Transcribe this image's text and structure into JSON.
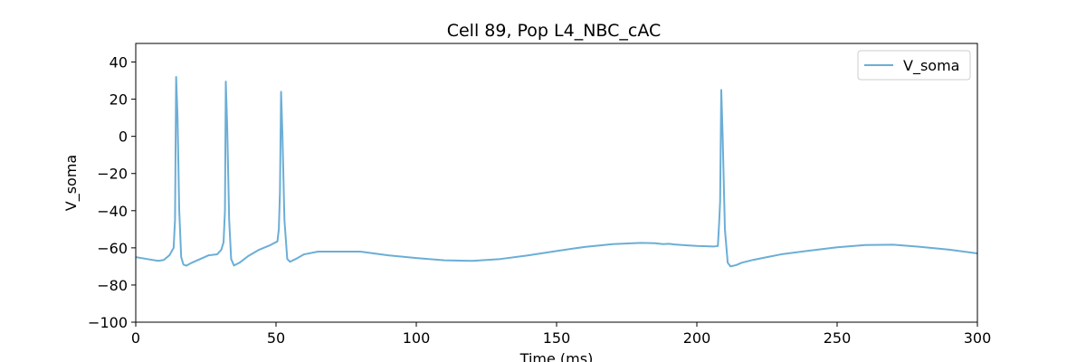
{
  "chart_data": {
    "type": "line",
    "title": "Cell 89, Pop L4_NBC_cAC",
    "xlabel": "Time (ms)",
    "ylabel": "V_soma",
    "xlim": [
      0,
      300
    ],
    "ylim": [
      -100,
      50
    ],
    "xticks": [
      0,
      50,
      100,
      150,
      200,
      250,
      300
    ],
    "yticks": [
      -100,
      -80,
      -60,
      -40,
      -20,
      0,
      20,
      40
    ],
    "grid": false,
    "legend_position": "top-right",
    "series": [
      {
        "name": "V_soma",
        "color": "#6baed6",
        "points": [
          [
            0,
            -65
          ],
          [
            4,
            -66
          ],
          [
            8,
            -67
          ],
          [
            10,
            -66.5
          ],
          [
            12,
            -64
          ],
          [
            13.5,
            -60
          ],
          [
            14,
            -45
          ],
          [
            14.4,
            32
          ],
          [
            14.9,
            10
          ],
          [
            15.5,
            -40
          ],
          [
            16.2,
            -65
          ],
          [
            17,
            -69
          ],
          [
            18,
            -69.6
          ],
          [
            20,
            -68
          ],
          [
            23,
            -66
          ],
          [
            26,
            -64
          ],
          [
            29,
            -63.5
          ],
          [
            30.5,
            -61
          ],
          [
            31.3,
            -57
          ],
          [
            31.8,
            -40
          ],
          [
            32.1,
            29.5
          ],
          [
            32.6,
            5
          ],
          [
            33.3,
            -45
          ],
          [
            34,
            -66
          ],
          [
            35,
            -69.5
          ],
          [
            37,
            -68
          ],
          [
            40,
            -64.5
          ],
          [
            44,
            -61
          ],
          [
            48,
            -58.5
          ],
          [
            50.5,
            -56.5
          ],
          [
            51,
            -50
          ],
          [
            51.4,
            -30
          ],
          [
            51.8,
            24
          ],
          [
            52.3,
            0
          ],
          [
            53,
            -45
          ],
          [
            54,
            -66
          ],
          [
            55,
            -67.5
          ],
          [
            57,
            -66
          ],
          [
            60,
            -63.5
          ],
          [
            65,
            -62
          ],
          [
            75,
            -62
          ],
          [
            80,
            -62
          ],
          [
            90,
            -64
          ],
          [
            100,
            -65.5
          ],
          [
            110,
            -66.7
          ],
          [
            120,
            -67
          ],
          [
            130,
            -66
          ],
          [
            140,
            -64
          ],
          [
            150,
            -61.7
          ],
          [
            160,
            -59.5
          ],
          [
            170,
            -58
          ],
          [
            180,
            -57.3
          ],
          [
            185,
            -57.5
          ],
          [
            188,
            -58
          ],
          [
            190,
            -57.8
          ],
          [
            192,
            -58.2
          ],
          [
            200,
            -59
          ],
          [
            206,
            -59.3
          ],
          [
            207.5,
            -59
          ],
          [
            208,
            -45
          ],
          [
            208.3,
            -35
          ],
          [
            208.7,
            25
          ],
          [
            209.2,
            0
          ],
          [
            210,
            -50
          ],
          [
            211,
            -68
          ],
          [
            212,
            -70
          ],
          [
            214,
            -69.3
          ],
          [
            216,
            -68
          ],
          [
            220,
            -66.5
          ],
          [
            225,
            -65
          ],
          [
            230,
            -63.5
          ],
          [
            240,
            -61.5
          ],
          [
            250,
            -59.7
          ],
          [
            260,
            -58.5
          ],
          [
            270,
            -58.3
          ],
          [
            280,
            -59.5
          ],
          [
            290,
            -61
          ],
          [
            300,
            -63
          ]
        ]
      }
    ]
  }
}
